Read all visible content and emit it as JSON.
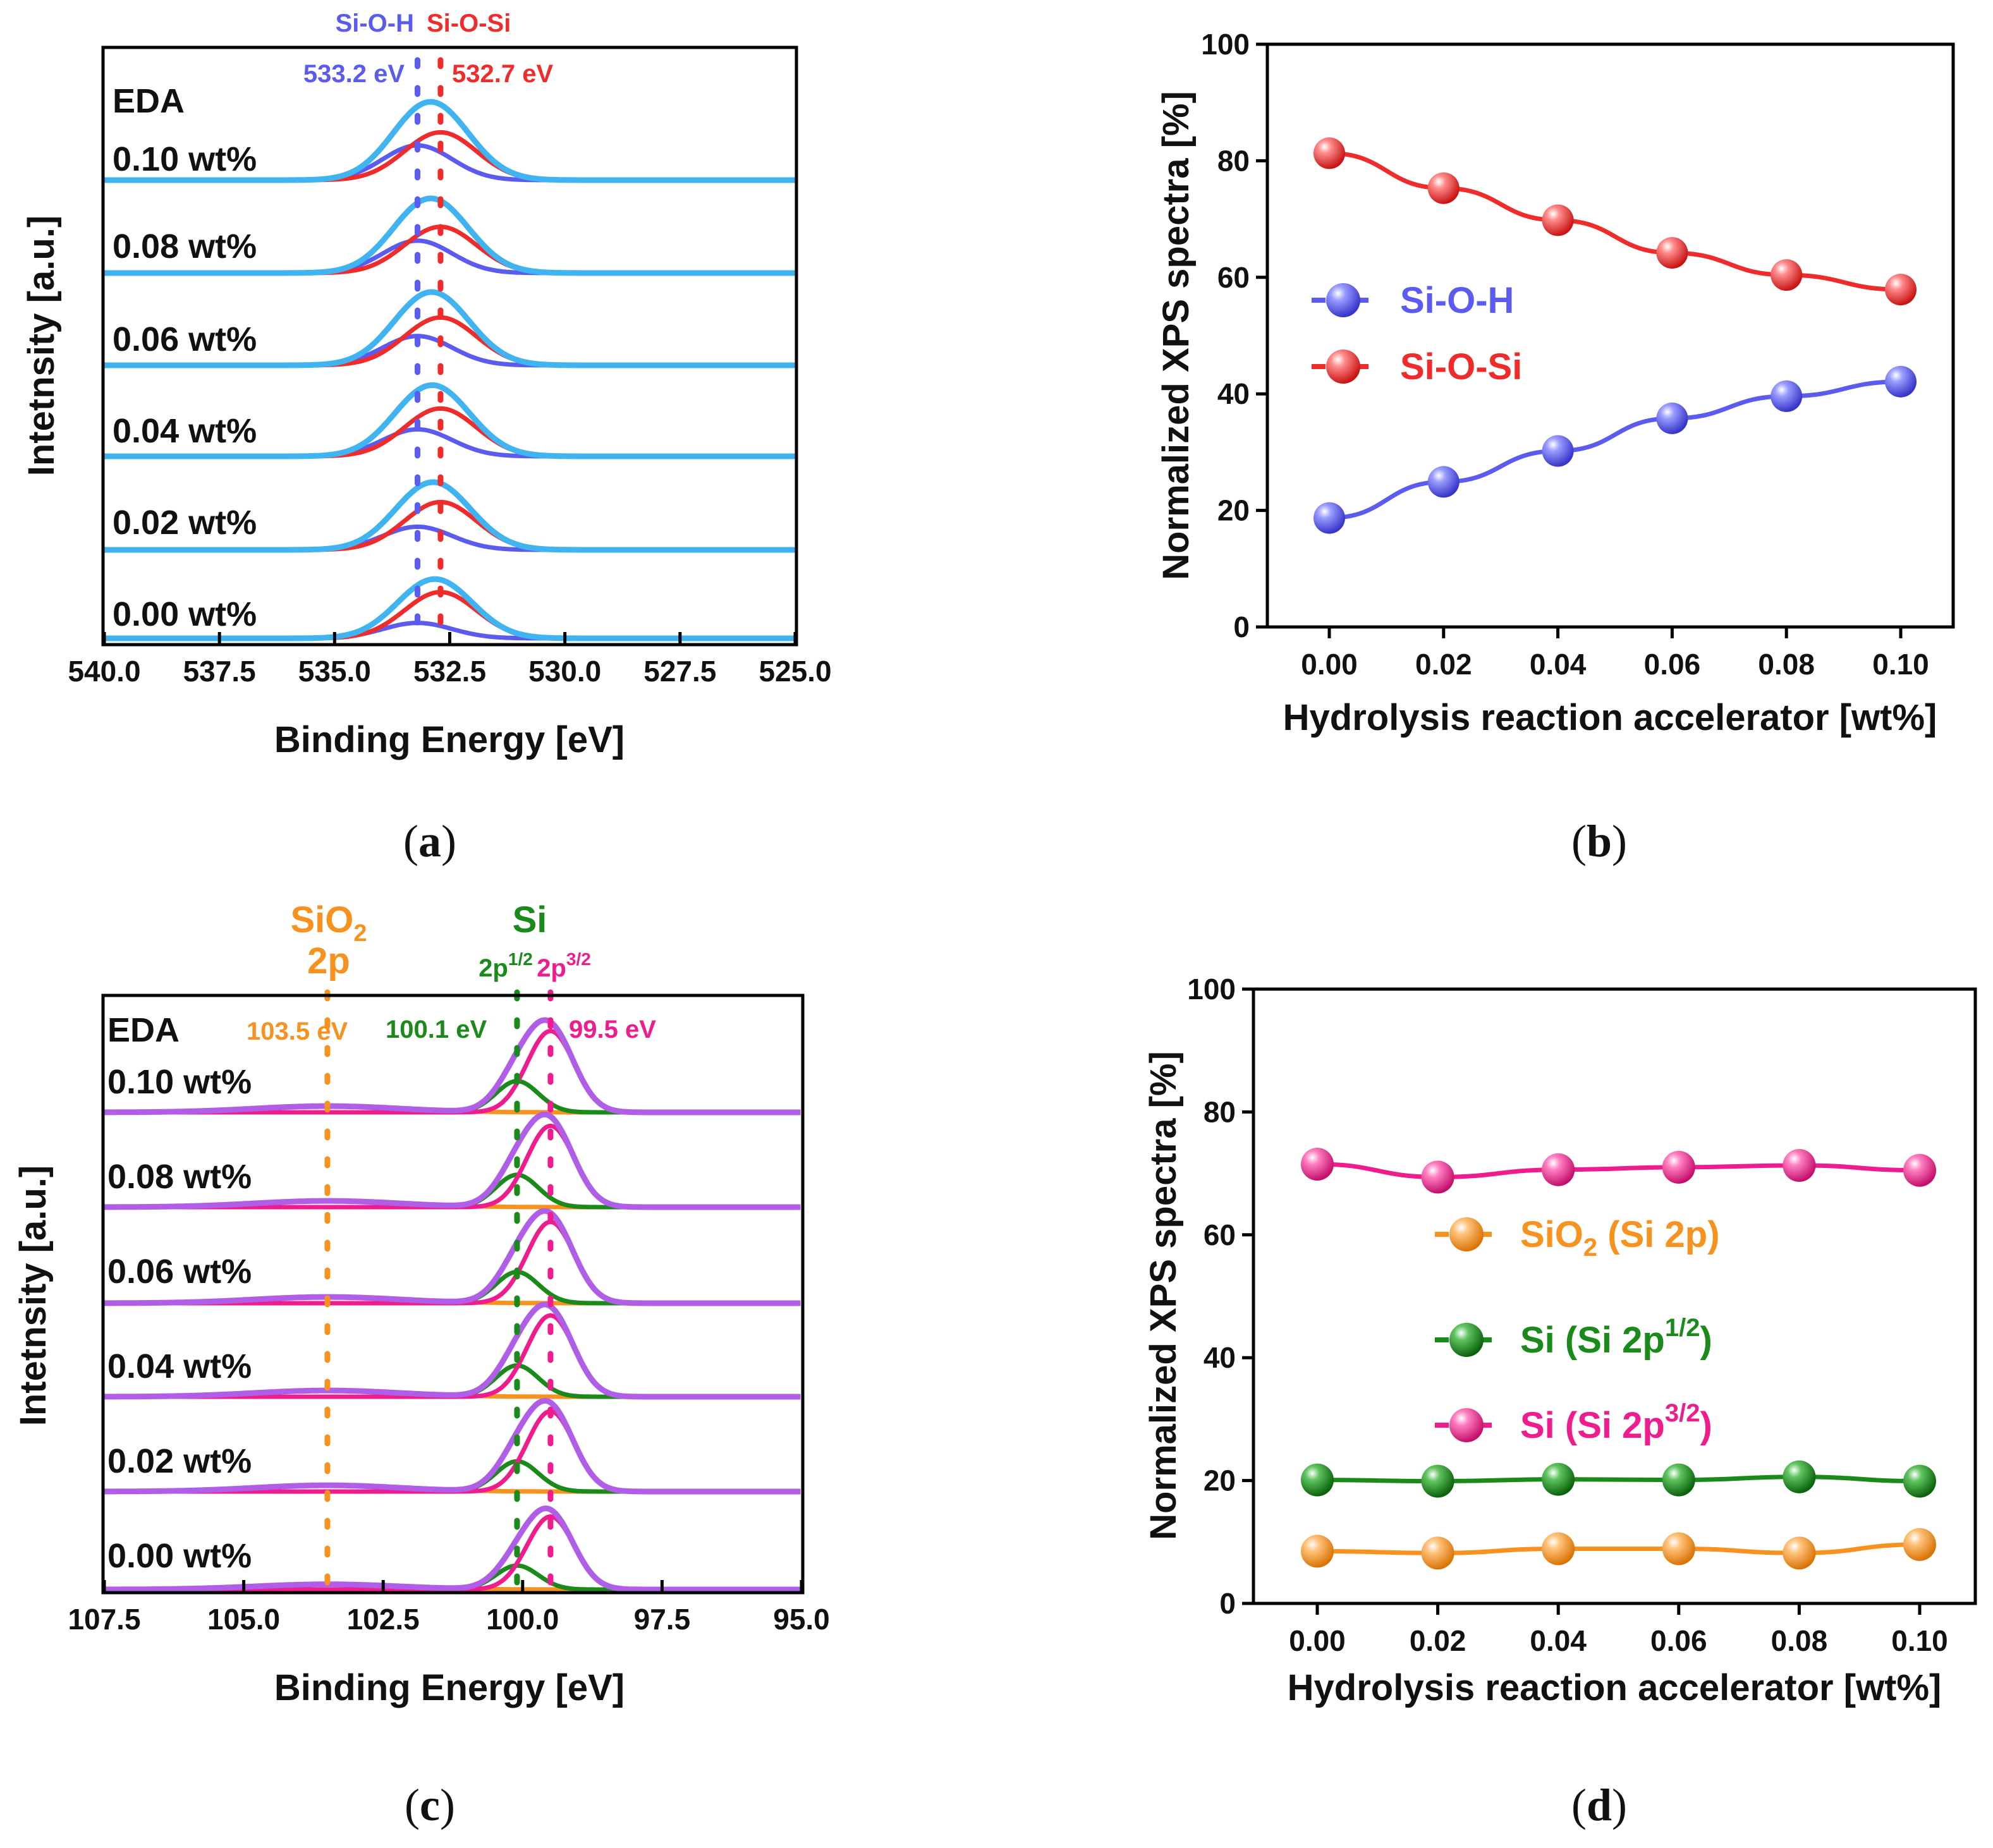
{
  "chart_data": [
    {
      "id": "a",
      "type": "line",
      "caption": "a",
      "xlabel": "Binding Energy [eV]",
      "ylabel": "Intetnsity [a.u.]",
      "xlim": [
        540.0,
        525.0
      ],
      "xticks": [
        "540.0",
        "537.5",
        "535.0",
        "532.5",
        "530.0",
        "527.5",
        "525.0"
      ],
      "header_label": "EDA",
      "samples": [
        "0.10 wt%",
        "0.08 wt%",
        "0.06 wt%",
        "0.04 wt%",
        "0.02 wt%",
        "0.00 wt%"
      ],
      "peaks": [
        {
          "name": "Si-O-H",
          "energy": 533.2,
          "label": "533.2 eV",
          "color": "#5b5bf0"
        },
        {
          "name": "Si-O-Si",
          "energy": 532.7,
          "label": "532.7 eV",
          "color": "#ef2b2b"
        }
      ],
      "envelope_color": "#3fb4f0",
      "peak_heights": {
        "Si-O-H": [
          0.45,
          0.42,
          0.38,
          0.35,
          0.3,
          0.2
        ],
        "Si-O-Si": [
          0.62,
          0.6,
          0.62,
          0.62,
          0.62,
          0.6
        ]
      }
    },
    {
      "id": "b",
      "type": "line",
      "caption": "b",
      "xlabel": "Hydrolysis reaction accelerator [wt%]",
      "ylabel": "Normalized XPS spectra [%]",
      "categories": [
        "0.00",
        "0.02",
        "0.04",
        "0.06",
        "0.08",
        "0.10"
      ],
      "x": [
        0.0,
        0.02,
        0.04,
        0.06,
        0.08,
        0.1
      ],
      "ylim": [
        0,
        100
      ],
      "yticks": [
        "0",
        "20",
        "40",
        "60",
        "80",
        "100"
      ],
      "series": [
        {
          "name": "Si-O-H",
          "values": [
            18.7,
            24.9,
            30.2,
            35.8,
            39.6,
            42.1
          ],
          "color": "#5b5bf0"
        },
        {
          "name": "Si-O-Si",
          "values": [
            81.3,
            75.3,
            69.8,
            64.2,
            60.4,
            57.9
          ],
          "color": "#ef2b2b"
        }
      ]
    },
    {
      "id": "c",
      "type": "line",
      "caption": "c",
      "xlabel": "Binding Energy [eV]",
      "ylabel": "Intetnsity [a.u.]",
      "xlim": [
        107.5,
        95.0
      ],
      "xticks": [
        "107.5",
        "105.0",
        "102.5",
        "100.0",
        "97.5",
        "95.0"
      ],
      "header_label": "EDA",
      "samples": [
        "0.10 wt%",
        "0.08 wt%",
        "0.06 wt%",
        "0.04 wt%",
        "0.02 wt%",
        "0.00 wt%"
      ],
      "group_labels": [
        {
          "text": "SiO",
          "sub": "2",
          "line2": "2p",
          "color": "#f7921e"
        },
        {
          "text": "Si",
          "color": "#1a8a1a"
        }
      ],
      "peaks": [
        {
          "name": "SiO2 2p",
          "energy": 103.5,
          "label": "103.5 eV",
          "orbital": "2p",
          "color": "#f7921e"
        },
        {
          "name": "Si 2p1/2",
          "energy": 100.1,
          "label": "100.1 eV",
          "orbital": "2p",
          "sup": "1/2",
          "color": "#1a8a1a"
        },
        {
          "name": "Si 2p3/2",
          "energy": 99.5,
          "label": "99.5 eV",
          "orbital": "2p",
          "sup": "3/2",
          "color": "#ee1c8c"
        }
      ],
      "envelope_color": "#b05ee8",
      "peak_heights": {
        "SiO2 2p": [
          0.06,
          0.06,
          0.06,
          0.06,
          0.06,
          0.05
        ],
        "Si 2p1/2": [
          0.3,
          0.31,
          0.3,
          0.3,
          0.29,
          0.23
        ],
        "Si 2p3/2": [
          0.78,
          0.78,
          0.78,
          0.78,
          0.77,
          0.7
        ]
      }
    },
    {
      "id": "d",
      "type": "line",
      "caption": "d",
      "xlabel": "Hydrolysis reaction accelerator [wt%]",
      "ylabel": "Normalized XPS spectra [%]",
      "categories": [
        "0.00",
        "0.02",
        "0.04",
        "0.06",
        "0.08",
        "0.10"
      ],
      "x": [
        0.0,
        0.02,
        0.04,
        0.06,
        0.08,
        0.1
      ],
      "ylim": [
        0,
        100
      ],
      "yticks": [
        "0",
        "20",
        "40",
        "60",
        "80",
        "100"
      ],
      "series": [
        {
          "name": "SiO2 (Si 2p)",
          "label_parts": [
            "SiO",
            "2",
            " (Si 2p)"
          ],
          "label_style": "sub",
          "values": [
            8.5,
            8.2,
            8.9,
            8.9,
            8.2,
            9.6
          ],
          "color": "#f7921e"
        },
        {
          "name": "Si (Si 2p1/2)",
          "label_parts": [
            "Si (Si 2p",
            "1/2",
            ")"
          ],
          "label_style": "sup",
          "values": [
            20.1,
            19.9,
            20.2,
            20.1,
            20.6,
            19.9
          ],
          "color": "#1a8a1a"
        },
        {
          "name": "Si (Si 2p3/2)",
          "label_parts": [
            "Si (Si 2p",
            "3/2",
            ")"
          ],
          "label_style": "sup",
          "values": [
            71.5,
            69.4,
            70.6,
            71.0,
            71.3,
            70.5
          ],
          "color": "#ee1c8c"
        }
      ]
    }
  ]
}
